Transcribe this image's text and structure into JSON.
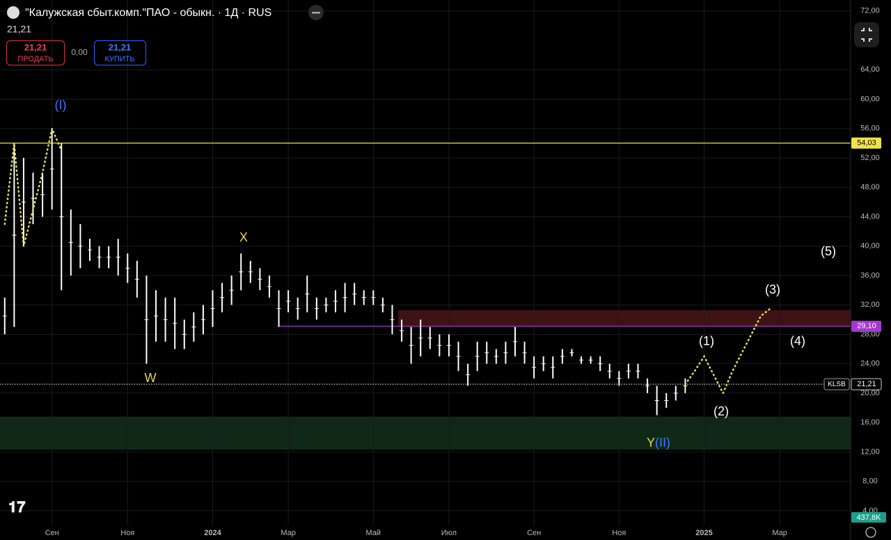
{
  "header": {
    "title": "\"Калужская сбыт.комп.\"ПАО - обыкн. · 1Д · RUS",
    "last": "21,21",
    "sell": {
      "price": "21,21",
      "label": "ПРОДАТЬ"
    },
    "spread": "0,00",
    "buy": {
      "price": "21,21",
      "label": "КУПИТЬ"
    }
  },
  "chart_data": {
    "type": "range-bar",
    "color": "#ffffff",
    "categories": [
      null,
      null,
      null,
      null,
      null,
      "Сен",
      null,
      null,
      null,
      null,
      null,
      null,
      null,
      "Ноя",
      null,
      null,
      null,
      null,
      null,
      null,
      null,
      null,
      "2024",
      null,
      null,
      null,
      null,
      null,
      null,
      null,
      "Мар",
      null,
      null,
      null,
      null,
      null,
      null,
      null,
      null,
      "Май",
      null,
      null,
      null,
      null,
      null,
      null,
      null,
      "Июл",
      null,
      null,
      null,
      null,
      null,
      null,
      null,
      null,
      "Сен",
      null,
      null,
      null,
      null,
      null,
      null,
      null,
      null,
      "Ноя",
      null,
      null,
      null,
      null,
      null,
      null,
      null,
      null,
      "2025",
      null,
      null,
      null,
      null,
      null,
      null,
      null,
      "Мар",
      null,
      null,
      null,
      null,
      null,
      null,
      null
    ],
    "highs": [
      33,
      54,
      52,
      50,
      50,
      56,
      54,
      45,
      43,
      41,
      40,
      40,
      41,
      39,
      38,
      36,
      34,
      33,
      33,
      30,
      31,
      32,
      34,
      35,
      36,
      39,
      38,
      37,
      36,
      34,
      34,
      33,
      36,
      33,
      33,
      34,
      35,
      35,
      34,
      34,
      33,
      32,
      30,
      29,
      30,
      29,
      28,
      28,
      27,
      24,
      27,
      27,
      26,
      27,
      29,
      27,
      25,
      25,
      25,
      26,
      26,
      25,
      25,
      25,
      24,
      23,
      24,
      24,
      22,
      21,
      20,
      21,
      22,
      null,
      null,
      null,
      null,
      null,
      null,
      null,
      null,
      null,
      null,
      null,
      null,
      null,
      null,
      null,
      null,
      null
    ],
    "lows": [
      28,
      29,
      40,
      43,
      44,
      45,
      34,
      36,
      37,
      38,
      37,
      37,
      36,
      35,
      33,
      24,
      27,
      27,
      26,
      26,
      27,
      28,
      29,
      31,
      32,
      34,
      35,
      34,
      33,
      29,
      31,
      30,
      31,
      30,
      31,
      31,
      31,
      32,
      32,
      32,
      31,
      28,
      27,
      24,
      25,
      26,
      25,
      25,
      23,
      21,
      23,
      24,
      24,
      24,
      25,
      24,
      22,
      23,
      22,
      24,
      25,
      24,
      24,
      23,
      22,
      21,
      22,
      22,
      20,
      17,
      18,
      19,
      20,
      null,
      null,
      null,
      null,
      null,
      null,
      null,
      null,
      null,
      null,
      null,
      null,
      null,
      null,
      null,
      null,
      null
    ],
    "projection": {
      "color": "#e8e05a",
      "values": [
        43,
        54,
        40,
        45,
        50,
        56,
        53,
        null,
        null,
        null,
        null,
        null,
        null,
        null,
        null,
        null,
        null,
        null,
        null,
        null,
        null,
        null,
        null,
        null,
        null,
        null,
        null,
        null,
        null,
        null,
        null,
        null,
        null,
        null,
        null,
        null,
        null,
        null,
        null,
        null,
        null,
        null,
        null,
        null,
        null,
        null,
        null,
        null,
        null,
        null,
        null,
        null,
        null,
        null,
        null,
        null,
        null,
        null,
        null,
        null,
        null,
        null,
        null,
        null,
        null,
        null,
        null,
        null,
        null,
        null,
        null,
        null,
        21.2,
        23,
        25,
        22.5,
        20,
        23,
        25.5,
        28,
        30.5,
        31.5,
        null,
        null,
        null,
        null,
        null,
        null,
        null,
        null
      ]
    },
    "ylim": [
      2,
      73.5
    ],
    "yticks": [
      {
        "value": 4,
        "label": "4,00"
      },
      {
        "value": 8,
        "label": "8,00"
      },
      {
        "value": 12,
        "label": "12,00"
      },
      {
        "value": 16,
        "label": "16,00"
      },
      {
        "value": 20,
        "label": "20,00"
      },
      {
        "value": 24,
        "label": "24,00"
      },
      {
        "value": 28,
        "label": "28,00"
      },
      {
        "value": 32,
        "label": "32,00"
      },
      {
        "value": 36,
        "label": "36,00"
      },
      {
        "value": 40,
        "label": "40,00"
      },
      {
        "value": 44,
        "label": "44,00"
      },
      {
        "value": 48,
        "label": "48,00"
      },
      {
        "value": 52,
        "label": "52,00"
      },
      {
        "value": 56,
        "label": "56,00"
      },
      {
        "value": 60,
        "label": "60,00"
      },
      {
        "value": 64,
        "label": "64,00"
      },
      {
        "value": 72,
        "label": "72,00"
      }
    ],
    "grid": true,
    "levels": [
      {
        "value": 54.03,
        "label": "54,03",
        "color": "#f0e24a"
      },
      {
        "value": 29.1,
        "label": "29,10",
        "color": "#a23ad0"
      },
      {
        "value": 21.21,
        "label": "21,21",
        "tag": "KLSB",
        "color": "#d0d0d0"
      }
    ],
    "zones": [
      {
        "from": 29.1,
        "to": 31.3,
        "color": "#4a1519"
      },
      {
        "from": 12.3,
        "to": 16.8,
        "color": "#13301b"
      }
    ],
    "annotations": [
      {
        "text": "(I)",
        "color": "#3c78ff"
      },
      {
        "text": "X",
        "color": "#e8d84a"
      },
      {
        "text": "W",
        "color": "#e8d84a"
      },
      {
        "text": "Y",
        "color": "#e8d84a"
      },
      {
        "text": "(II)",
        "color": "#3c78ff"
      },
      {
        "text": "(1)",
        "color": "#ffffff"
      },
      {
        "text": "(2)",
        "color": "#ffffff"
      },
      {
        "text": "(3)",
        "color": "#ffffff"
      },
      {
        "text": "(4)",
        "color": "#ffffff"
      },
      {
        "text": "(5)",
        "color": "#ffffff"
      }
    ],
    "volume_label": "437,8K"
  }
}
